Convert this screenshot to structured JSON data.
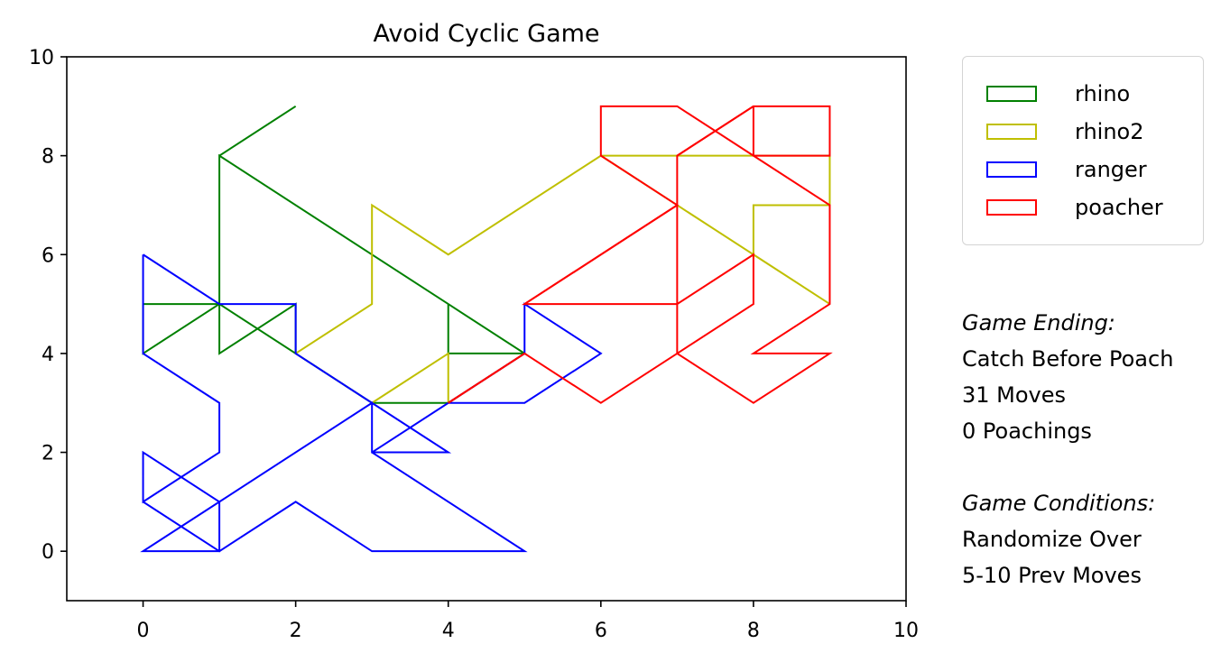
{
  "chart_data": {
    "type": "line",
    "title": "Avoid Cyclic Game",
    "xlabel": "",
    "ylabel": "",
    "xlim": [
      -1,
      10
    ],
    "ylim": [
      -1,
      10
    ],
    "xticks": [
      0,
      2,
      4,
      6,
      8,
      10
    ],
    "yticks": [
      0,
      2,
      4,
      6,
      8,
      10
    ],
    "grid": false,
    "legend_position": "outside-top-right",
    "series": [
      {
        "name": "rhino",
        "color": "#008000",
        "segments": [
          [
            [
              2,
              9
            ],
            [
              1,
              8
            ],
            [
              1,
              4
            ],
            [
              2,
              5
            ],
            [
              2,
              4
            ],
            [
              1,
              5
            ],
            [
              0,
              4
            ],
            [
              0,
              5
            ],
            [
              1,
              5
            ],
            [
              1,
              8
            ],
            [
              4,
              5
            ],
            [
              5,
              4
            ],
            [
              4,
              4
            ],
            [
              4,
              5
            ],
            [
              5,
              4
            ],
            [
              4,
              3
            ],
            [
              3,
              3
            ],
            [
              1,
              5
            ]
          ]
        ]
      },
      {
        "name": "rhino2",
        "color": "#bfbf00",
        "segments": [
          [
            [
              2,
              4
            ],
            [
              3,
              5
            ],
            [
              3,
              7
            ],
            [
              4,
              6
            ],
            [
              6,
              8
            ],
            [
              9,
              8
            ],
            [
              9,
              7
            ],
            [
              8,
              7
            ],
            [
              8,
              6
            ],
            [
              9,
              5
            ],
            [
              7,
              7
            ],
            [
              6,
              8
            ]
          ],
          [
            [
              3,
              3
            ],
            [
              4,
              4
            ],
            [
              4,
              3
            ]
          ]
        ]
      },
      {
        "name": "ranger",
        "color": "#0000ff",
        "segments": [
          [
            [
              0,
              6
            ],
            [
              0,
              4
            ],
            [
              1,
              3
            ],
            [
              1,
              2
            ],
            [
              0,
              1
            ],
            [
              0,
              2
            ],
            [
              1,
              1
            ],
            [
              1,
              0
            ],
            [
              0,
              0
            ],
            [
              1,
              1
            ],
            [
              3,
              3
            ],
            [
              3,
              2
            ],
            [
              4,
              2
            ],
            [
              3,
              3
            ],
            [
              2,
              4
            ],
            [
              2,
              5
            ],
            [
              1,
              5
            ],
            [
              0,
              6
            ]
          ],
          [
            [
              0,
              1
            ],
            [
              1,
              0
            ],
            [
              2,
              1
            ],
            [
              3,
              0
            ],
            [
              5,
              0
            ],
            [
              3,
              2
            ]
          ],
          [
            [
              3,
              2
            ],
            [
              4,
              3
            ],
            [
              5,
              3
            ],
            [
              6,
              4
            ],
            [
              5,
              5
            ],
            [
              5,
              4
            ],
            [
              4,
              3
            ]
          ]
        ]
      },
      {
        "name": "poacher",
        "color": "#ff0000",
        "segments": [
          [
            [
              4,
              3
            ],
            [
              5,
              4
            ],
            [
              6,
              3
            ],
            [
              7,
              4
            ],
            [
              8,
              5
            ],
            [
              8,
              6
            ],
            [
              7,
              5
            ],
            [
              5,
              5
            ],
            [
              7,
              7
            ],
            [
              6,
              8
            ],
            [
              6,
              9
            ],
            [
              7,
              9
            ],
            [
              8,
              8
            ],
            [
              9,
              8
            ],
            [
              9,
              9
            ],
            [
              8,
              9
            ],
            [
              7,
              8
            ],
            [
              7,
              4
            ],
            [
              8,
              3
            ],
            [
              9,
              4
            ],
            [
              8,
              4
            ],
            [
              9,
              5
            ],
            [
              9,
              7
            ],
            [
              8,
              8
            ],
            [
              7,
              9
            ]
          ],
          [
            [
              5,
              4
            ],
            [
              4,
              3
            ],
            [
              5,
              4
            ]
          ],
          [
            [
              5,
              5
            ],
            [
              7,
              7
            ]
          ],
          [
            [
              8,
              8
            ],
            [
              8,
              9
            ]
          ],
          [
            [
              7,
              8
            ],
            [
              8,
              9
            ]
          ]
        ]
      }
    ]
  },
  "annotations": {
    "ending_header": "Game Ending:",
    "ending_lines": [
      "Catch Before Poach",
      "31 Moves",
      "0 Poachings"
    ],
    "conditions_header": "Game Conditions:",
    "conditions_lines": [
      "Randomize Over",
      "5-10 Prev Moves"
    ]
  }
}
